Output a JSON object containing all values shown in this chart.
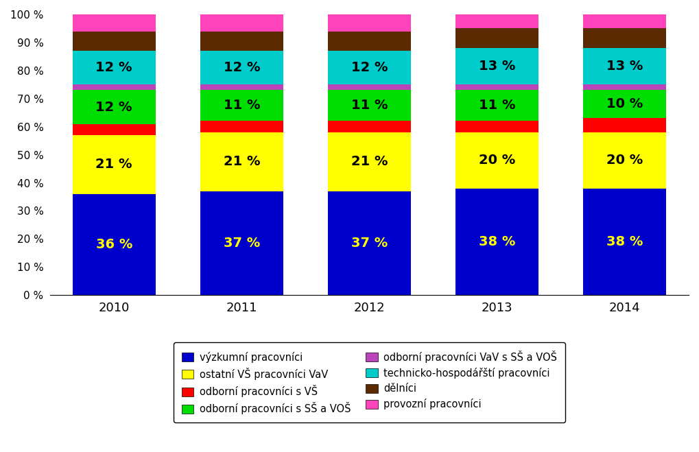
{
  "years": [
    "2010",
    "2011",
    "2012",
    "2013",
    "2014"
  ],
  "stack_order": [
    "výzkumní pracovníci",
    "ostatní VŠ pracovníci VaV",
    "odborní pracovníci s VŠ",
    "odborní pracovníci s SŠ a VOŠ",
    "odborní pracovníci VaV s SŠ a VOŠ",
    "technicko-hospodářští pracovníci",
    "dělníci",
    "provozní pracovníci"
  ],
  "legend_order": [
    "výzkumní pracovníci",
    "ostatní VŠ pracovníci VaV",
    "odborní pracovníci s VŠ",
    "odborní pracovníci s SŠ a VOŠ",
    "odborní pracovníci VaV s SŠ a VOŠ",
    "technicko-hospodářští pracovníci",
    "dělníci",
    "provozní pracovníci"
  ],
  "colors": {
    "výzkumní pracovníci": "#0000CC",
    "ostatní VŠ pracovníci VaV": "#FFFF00",
    "odborní pracovníci s VŠ": "#FF0000",
    "odborní pracovníci s SŠ a VOŠ": "#00DD00",
    "odborní pracovníci VaV s SŠ a VOŠ": "#BB44BB",
    "technicko-hospodářští pracovníci": "#00CCCC",
    "dělníci": "#5C2A00",
    "provozní pracovníci": "#FF44BB"
  },
  "data": {
    "výzkumní pracovníci": [
      36,
      37,
      37,
      38,
      38
    ],
    "ostatní VŠ pracovníci VaV": [
      21,
      21,
      21,
      20,
      20
    ],
    "odborní pracovníci s VŠ": [
      4,
      4,
      4,
      4,
      5
    ],
    "odborní pracovníci s SŠ a VOŠ": [
      12,
      11,
      11,
      11,
      10
    ],
    "odborní pracovníci VaV s SŠ a VOŠ": [
      2,
      2,
      2,
      2,
      2
    ],
    "technicko-hospodářští pracovníci": [
      12,
      12,
      12,
      13,
      13
    ],
    "dělníci": [
      7,
      7,
      7,
      7,
      7
    ],
    "provozní pracovníci": [
      6,
      6,
      6,
      5,
      5
    ]
  },
  "labeled_cats": {
    "výzkumní pracovníci": "#FFFF00",
    "ostatní VŠ pracovníci VaV": "#000000",
    "odborní pracovníci s SŠ a VOŠ": "#000000",
    "technicko-hospodářští pracovníci": "#000000"
  },
  "label_fontsize": 14,
  "ytick_labels": [
    "0 %",
    "10 %",
    "20 %",
    "30 %",
    "40 %",
    "50 %",
    "60 %",
    "70 %",
    "80 %",
    "90 %",
    "100 %"
  ],
  "ytick_values": [
    0,
    10,
    20,
    30,
    40,
    50,
    60,
    70,
    80,
    90,
    100
  ],
  "bar_width": 0.65,
  "figsize": [
    10.19,
    6.59
  ],
  "dpi": 100,
  "legend_left_col": [
    "výzkumní pracovníci",
    "odborní pracovníci s VŠ",
    "odborní pracovníci VaV s SŠ a VOŠ",
    "dělníci"
  ],
  "legend_right_col": [
    "ostatní VŠ pracovníci VaV",
    "odborní pracovníci s SŠ a VOŠ",
    "technicko-hospodářští pracovníci",
    "provozní pracovníci"
  ]
}
